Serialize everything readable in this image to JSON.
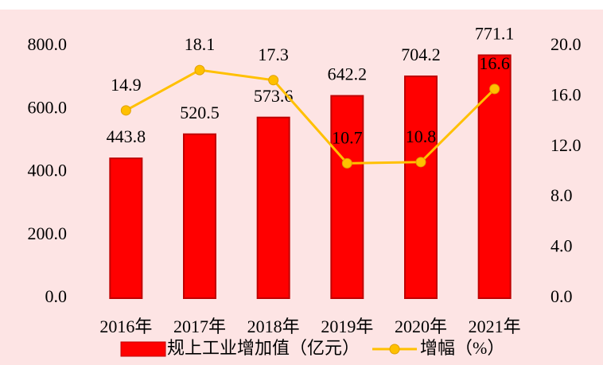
{
  "chart_data": {
    "type": "bar_line",
    "categories": [
      "2016年",
      "2017年",
      "2018年",
      "2019年",
      "2020年",
      "2021年"
    ],
    "series": [
      {
        "name": "规上工业增加值（亿元）",
        "color": "#ff0000",
        "type": "bar",
        "values": [
          443.8,
          520.5,
          573.6,
          642.2,
          704.2,
          771.1
        ]
      },
      {
        "name": "增幅（%）",
        "color": "#ffc000",
        "type": "line",
        "axis": "y2",
        "values": [
          14.9,
          18.1,
          17.3,
          10.7,
          10.8,
          16.6
        ]
      }
    ],
    "ylim": [
      0,
      800
    ],
    "yticks": [
      {
        "value": 0,
        "label": "0.0"
      },
      {
        "value": 200,
        "label": "200.0"
      },
      {
        "value": 400,
        "label": "400.0"
      },
      {
        "value": 600,
        "label": "600.0"
      },
      {
        "value": 800,
        "label": "800.0"
      }
    ],
    "y2lim": [
      0,
      20
    ],
    "y2ticks": [
      {
        "value": 0,
        "label": "0.0"
      },
      {
        "value": 4,
        "label": "4.0"
      },
      {
        "value": 8,
        "label": "8.0"
      },
      {
        "value": 12,
        "label": "12.0"
      },
      {
        "value": 16,
        "label": "16.0"
      },
      {
        "value": 20,
        "label": "20.0"
      }
    ],
    "legend": "bottom"
  }
}
